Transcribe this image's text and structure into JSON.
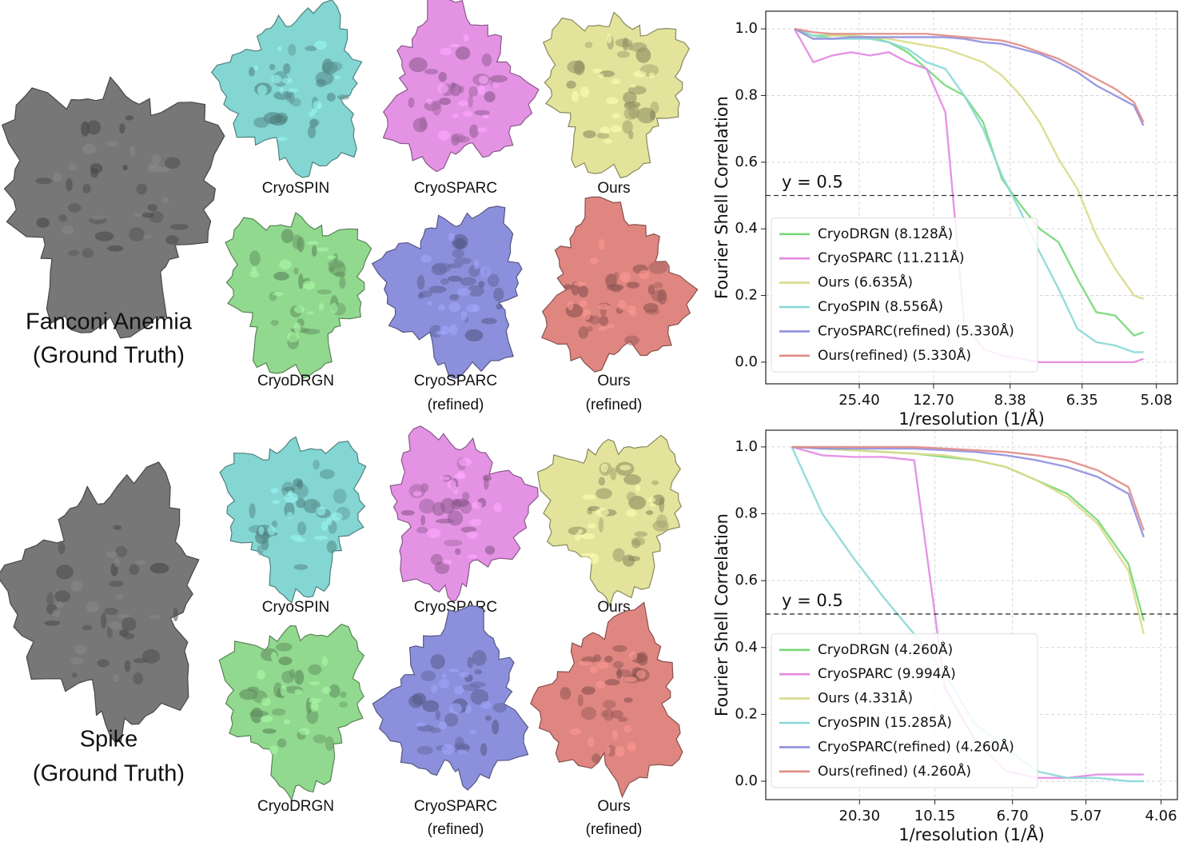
{
  "figure": {
    "groups": [
      {
        "name": [
          "Fanconi Anemia",
          "(Ground Truth)"
        ],
        "maps": [
          [
            "CryoSPIN"
          ],
          [
            "CryoSPARC"
          ],
          [
            "Ours"
          ],
          [
            "CryoDRGN"
          ],
          [
            "CryoSPARC",
            "(refined)"
          ],
          [
            "Ours",
            "(refined)"
          ]
        ]
      },
      {
        "name": [
          "Spike",
          "(Ground Truth)"
        ],
        "maps": [
          [
            "CryoSPIN"
          ],
          [
            "CryoSPARC"
          ],
          [
            "Ours"
          ],
          [
            "CryoDRGN"
          ],
          [
            "CryoSPARC",
            "(refined)"
          ],
          [
            "Ours",
            "(refined)"
          ]
        ]
      }
    ]
  },
  "chart_data": [
    {
      "type": "line",
      "xlabel": "1/resolution (1/Å)",
      "ylabel": "Fourier Shell Correlation",
      "x": [
        0.005,
        0.015,
        0.025,
        0.035,
        0.045,
        0.055,
        0.065,
        0.075,
        0.085,
        0.095,
        0.105,
        0.115,
        0.125,
        0.135,
        0.145,
        0.155,
        0.165,
        0.175,
        0.185,
        0.19
      ],
      "series": [
        {
          "name": "CryoDRGN (8.128Å)",
          "color": "#77d877",
          "values": [
            1.0,
            0.98,
            0.98,
            0.98,
            0.975,
            0.96,
            0.93,
            0.88,
            0.83,
            0.8,
            0.72,
            0.55,
            0.47,
            0.4,
            0.36,
            0.25,
            0.15,
            0.14,
            0.08,
            0.09
          ]
        },
        {
          "name": "CryoSPARC (11.211Å)",
          "color": "#e28ae2",
          "values": [
            1.0,
            0.9,
            0.92,
            0.93,
            0.92,
            0.93,
            0.9,
            0.88,
            0.75,
            0.12,
            0.04,
            0.02,
            0.01,
            0.0,
            0.0,
            0.0,
            0.0,
            0.0,
            0.0,
            0.01
          ]
        },
        {
          "name": "Ours (6.635Å)",
          "color": "#dada8a",
          "values": [
            1.0,
            0.97,
            0.98,
            0.98,
            0.975,
            0.97,
            0.96,
            0.95,
            0.94,
            0.92,
            0.9,
            0.86,
            0.8,
            0.72,
            0.61,
            0.52,
            0.38,
            0.28,
            0.2,
            0.19
          ]
        },
        {
          "name": "CryoSPIN (8.556Å)",
          "color": "#8ad8d8",
          "values": [
            1.0,
            0.98,
            0.97,
            0.97,
            0.97,
            0.96,
            0.94,
            0.9,
            0.88,
            0.8,
            0.7,
            0.56,
            0.45,
            0.33,
            0.22,
            0.1,
            0.06,
            0.05,
            0.03,
            0.03
          ]
        },
        {
          "name": "CryoSPARC(refined) (5.330Å)",
          "color": "#8f8fe0",
          "values": [
            1.0,
            0.97,
            0.97,
            0.975,
            0.975,
            0.975,
            0.975,
            0.975,
            0.975,
            0.97,
            0.96,
            0.955,
            0.94,
            0.925,
            0.9,
            0.87,
            0.83,
            0.8,
            0.77,
            0.71
          ]
        },
        {
          "name": "Ours(refined) (5.330Å)",
          "color": "#e08c86",
          "values": [
            1.0,
            0.99,
            0.985,
            0.985,
            0.985,
            0.985,
            0.985,
            0.985,
            0.98,
            0.975,
            0.97,
            0.965,
            0.95,
            0.93,
            0.91,
            0.88,
            0.85,
            0.82,
            0.78,
            0.72
          ]
        }
      ],
      "xlim": [
        -0.0102,
        0.208
      ],
      "ylim": [
        -0.065,
        1.053
      ],
      "xticks": [
        {
          "value": 0.03937,
          "label": "25.40"
        },
        {
          "value": 0.07874,
          "label": "12.70"
        },
        {
          "value": 0.11933,
          "label": "8.38"
        },
        {
          "value": 0.15748,
          "label": "6.35"
        },
        {
          "value": 0.19685,
          "label": "5.08"
        }
      ],
      "yticks": [
        {
          "value": 0,
          "label": "0.0"
        },
        {
          "value": 0.2,
          "label": "0.2"
        },
        {
          "value": 0.4,
          "label": "0.4"
        },
        {
          "value": 0.6,
          "label": "0.6"
        },
        {
          "value": 0.8,
          "label": "0.8"
        },
        {
          "value": 1,
          "label": "1.0"
        }
      ],
      "hline": 0.5,
      "annotation": "y = 0.5",
      "grid": true,
      "legend": "lower left"
    },
    {
      "type": "line",
      "xlabel": "1/resolution (1/Å)",
      "ylabel": "Fourier Shell Correlation",
      "x": [
        0.005,
        0.025,
        0.045,
        0.065,
        0.085,
        0.105,
        0.125,
        0.145,
        0.165,
        0.185,
        0.205,
        0.225,
        0.235
      ],
      "series": [
        {
          "name": "CryoDRGN (4.260Å)",
          "color": "#77d877",
          "values": [
            1.0,
            0.995,
            0.99,
            0.985,
            0.98,
            0.97,
            0.96,
            0.94,
            0.9,
            0.86,
            0.78,
            0.65,
            0.48
          ]
        },
        {
          "name": "CryoSPARC (9.994Å)",
          "color": "#e28ae2",
          "values": [
            1.0,
            0.975,
            0.97,
            0.97,
            0.96,
            0.28,
            0.12,
            0.03,
            0.01,
            0.01,
            0.02,
            0.02,
            0.02
          ]
        },
        {
          "name": "Ours (4.331Å)",
          "color": "#dada8a",
          "values": [
            1.0,
            0.995,
            0.99,
            0.985,
            0.98,
            0.975,
            0.96,
            0.94,
            0.9,
            0.85,
            0.77,
            0.63,
            0.44
          ]
        },
        {
          "name": "CryoSPIN (15.285Å)",
          "color": "#8ad8d8",
          "values": [
            1.0,
            0.8,
            0.67,
            0.55,
            0.44,
            0.32,
            0.17,
            0.1,
            0.03,
            0.01,
            0.01,
            0.0,
            0.0
          ]
        },
        {
          "name": "CryoSPARC(refined) (4.260Å)",
          "color": "#8f8fe0",
          "values": [
            1.0,
            0.995,
            0.995,
            0.995,
            0.995,
            0.99,
            0.985,
            0.975,
            0.96,
            0.94,
            0.91,
            0.86,
            0.73
          ]
        },
        {
          "name": "Ours(refined) (4.260Å)",
          "color": "#e08c86",
          "values": [
            1.0,
            1.0,
            1.0,
            1.0,
            1.0,
            0.995,
            0.99,
            0.985,
            0.975,
            0.96,
            0.93,
            0.88,
            0.75
          ]
        }
      ],
      "xlim": [
        -0.012,
        0.257
      ],
      "ylim": [
        -0.055,
        1.05
      ],
      "xticks": [
        {
          "value": 0.04926,
          "label": "20.30"
        },
        {
          "value": 0.09852,
          "label": "10.15"
        },
        {
          "value": 0.14925,
          "label": "6.70"
        },
        {
          "value": 0.19724,
          "label": "5.07"
        },
        {
          "value": 0.24631,
          "label": "4.06"
        }
      ],
      "yticks": [
        {
          "value": 0,
          "label": "0.0"
        },
        {
          "value": 0.2,
          "label": "0.2"
        },
        {
          "value": 0.4,
          "label": "0.4"
        },
        {
          "value": 0.6,
          "label": "0.6"
        },
        {
          "value": 0.8,
          "label": "0.8"
        },
        {
          "value": 1,
          "label": "1.0"
        }
      ],
      "hline": 0.5,
      "annotation": "y = 0.5",
      "grid": true,
      "legend": "lower left"
    }
  ]
}
